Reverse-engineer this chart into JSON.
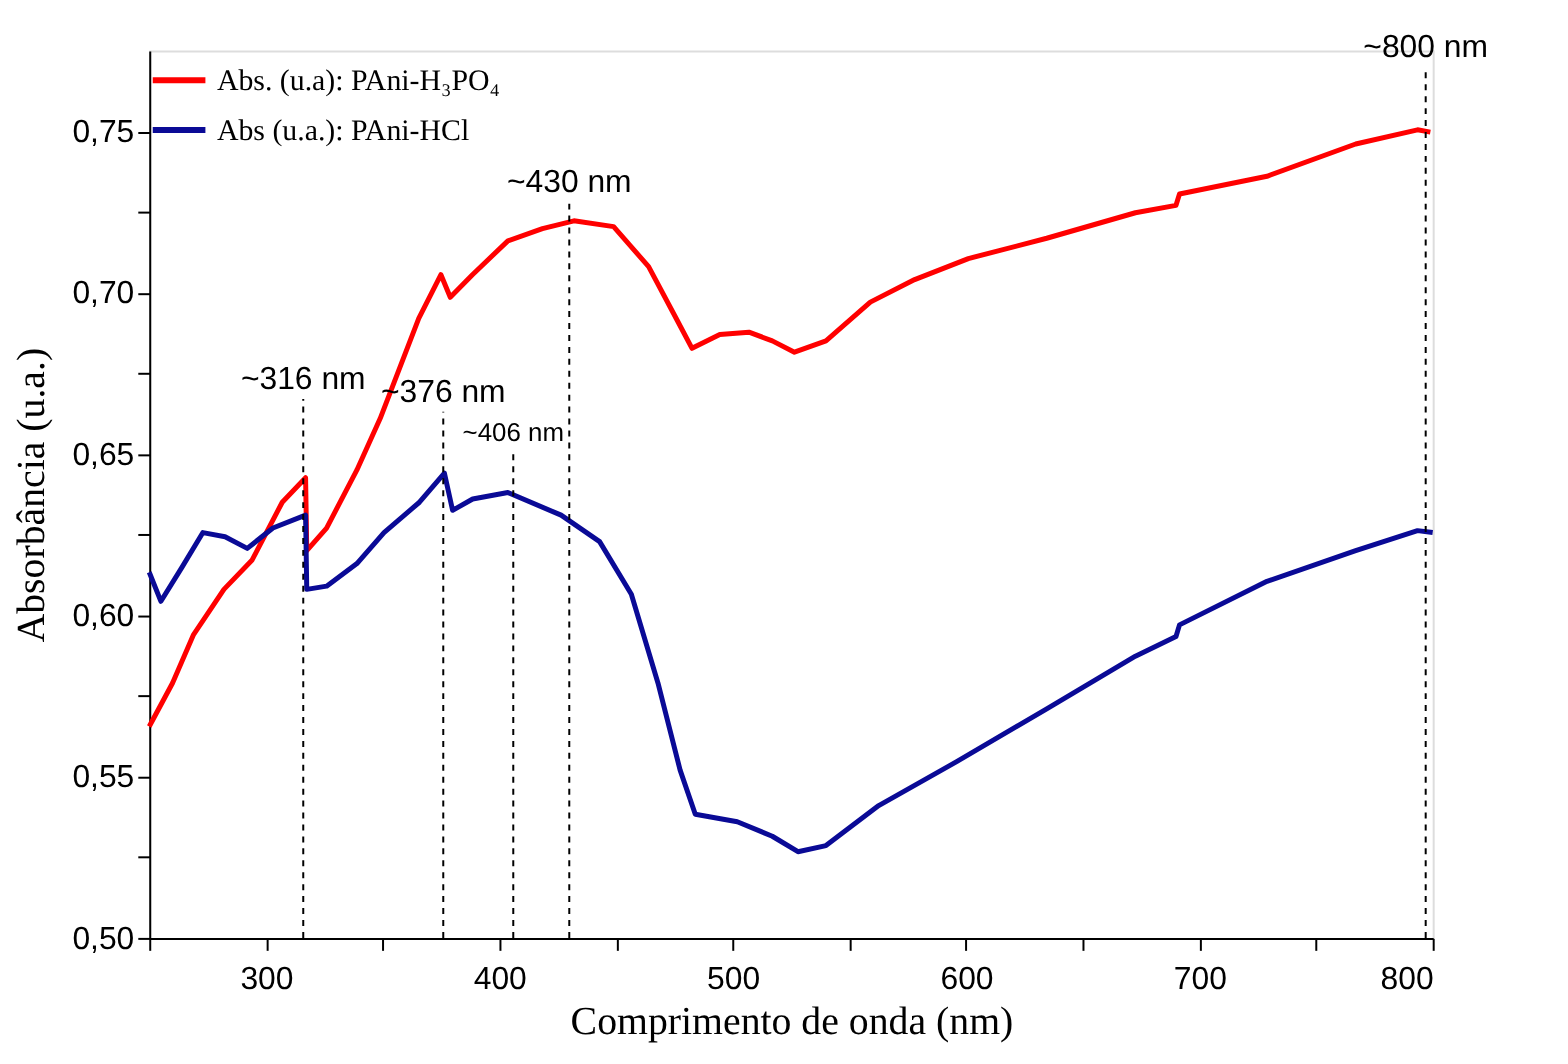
{
  "chart_data": {
    "type": "line",
    "xlabel": "Comprimento de onda (nm)",
    "ylabel": "Absorbância (u.a.)",
    "xlim": [
      250,
      800
    ],
    "ylim": [
      0.5,
      0.775
    ],
    "xticks": [
      {
        "value": 250,
        "label": null
      },
      300,
      {
        "value": 350,
        "label": null
      },
      400,
      {
        "value": 450,
        "label": null
      },
      500,
      {
        "value": 550,
        "label": null
      },
      600,
      {
        "value": 650,
        "label": null
      },
      700,
      {
        "value": 750,
        "label": null
      },
      800
    ],
    "yticks": [
      {
        "value": 0.5,
        "label": "0,50"
      },
      {
        "value": 0.525,
        "label": null
      },
      {
        "value": 0.55,
        "label": "0,55"
      },
      {
        "value": 0.575,
        "label": null
      },
      {
        "value": 0.6,
        "label": "0,60"
      },
      {
        "value": 0.625,
        "label": null
      },
      {
        "value": 0.65,
        "label": "0,65"
      },
      {
        "value": 0.675,
        "label": null
      },
      {
        "value": 0.7,
        "label": "0,70"
      },
      {
        "value": 0.725,
        "label": null
      },
      {
        "value": 0.75,
        "label": "0,75"
      }
    ],
    "grid": false,
    "legend": "top left",
    "marker": "none",
    "line_style": "solid",
    "series": [
      {
        "name": "Abs. (u.a): PAni-H₃PO₄",
        "color": "#ff0000",
        "x": [
          250,
          260,
          269,
          282,
          294,
          307,
          317,
          317.5,
          326,
          339,
          349,
          365.5,
          375,
          379,
          388.5,
          403.7,
          418.5,
          432,
          449,
          464,
          476,
          482.6,
          494.5,
          507,
          517,
          526.5,
          540,
          559,
          578,
          601,
          634.6,
          672.6,
          690,
          691.5,
          729,
          767,
          793.5,
          799
        ],
        "values": [
          0.5655,
          0.579,
          0.594,
          0.608,
          0.617,
          0.635,
          0.6426,
          0.62,
          0.627,
          0.645,
          0.661,
          0.692,
          0.7055,
          0.6985,
          0.7055,
          0.716,
          0.7198,
          0.7222,
          0.7204,
          0.708,
          0.6917,
          0.6827,
          0.687,
          0.6877,
          0.685,
          0.6815,
          0.685,
          0.697,
          0.704,
          0.7105,
          0.7168,
          0.7247,
          0.727,
          0.7305,
          0.736,
          0.746,
          0.7504,
          0.7497
        ]
      },
      {
        "name": "Abs (u.a.): PAni-HCl",
        "color": "#0a0a96",
        "x": [
          250,
          255,
          264,
          273,
          282.5,
          292,
          303,
          317,
          317.5,
          326,
          339,
          350.6,
          365.8,
          376.5,
          380,
          388.6,
          403.7,
          426.5,
          443,
          456.6,
          468,
          477.5,
          484,
          502,
          517,
          528,
          540,
          562.6,
          596,
          634.6,
          672.6,
          690,
          691.5,
          729,
          767,
          793.5,
          800
        ],
        "values": [
          0.6133,
          0.6043,
          0.6148,
          0.6256,
          0.6243,
          0.6207,
          0.627,
          0.631,
          0.608,
          0.609,
          0.616,
          0.6256,
          0.635,
          0.644,
          0.6325,
          0.636,
          0.638,
          0.631,
          0.6228,
          0.6065,
          0.579,
          0.552,
          0.5383,
          0.536,
          0.5315,
          0.5267,
          0.5286,
          0.541,
          0.5546,
          0.571,
          0.5873,
          0.5934,
          0.597,
          0.6105,
          0.62,
          0.6262,
          0.6256
        ]
      }
    ],
    "ref_lines": [
      {
        "axis": "x",
        "value": 316,
        "line_style": "dashed",
        "color": "#000000"
      },
      {
        "axis": "x",
        "value": 376,
        "line_style": "dashed",
        "color": "#000000"
      },
      {
        "axis": "x",
        "value": 406,
        "line_style": "dashed",
        "color": "#000000"
      },
      {
        "axis": "x",
        "value": 430,
        "line_style": "dashed",
        "color": "#000000"
      },
      {
        "axis": "x",
        "value": 797,
        "line_style": "dashed",
        "color": "#000000"
      }
    ],
    "annotations": [
      {
        "text": "~316 nm",
        "x": 316,
        "y": 0.667
      },
      {
        "text": "~376 nm",
        "x": 376,
        "y": 0.663
      },
      {
        "text": "~406 nm",
        "x": 406,
        "y": 0.651
      },
      {
        "text": "~430 nm",
        "x": 430,
        "y": 0.728
      },
      {
        "text": "~800 nm",
        "x": 797,
        "y": 0.77
      }
    ]
  }
}
